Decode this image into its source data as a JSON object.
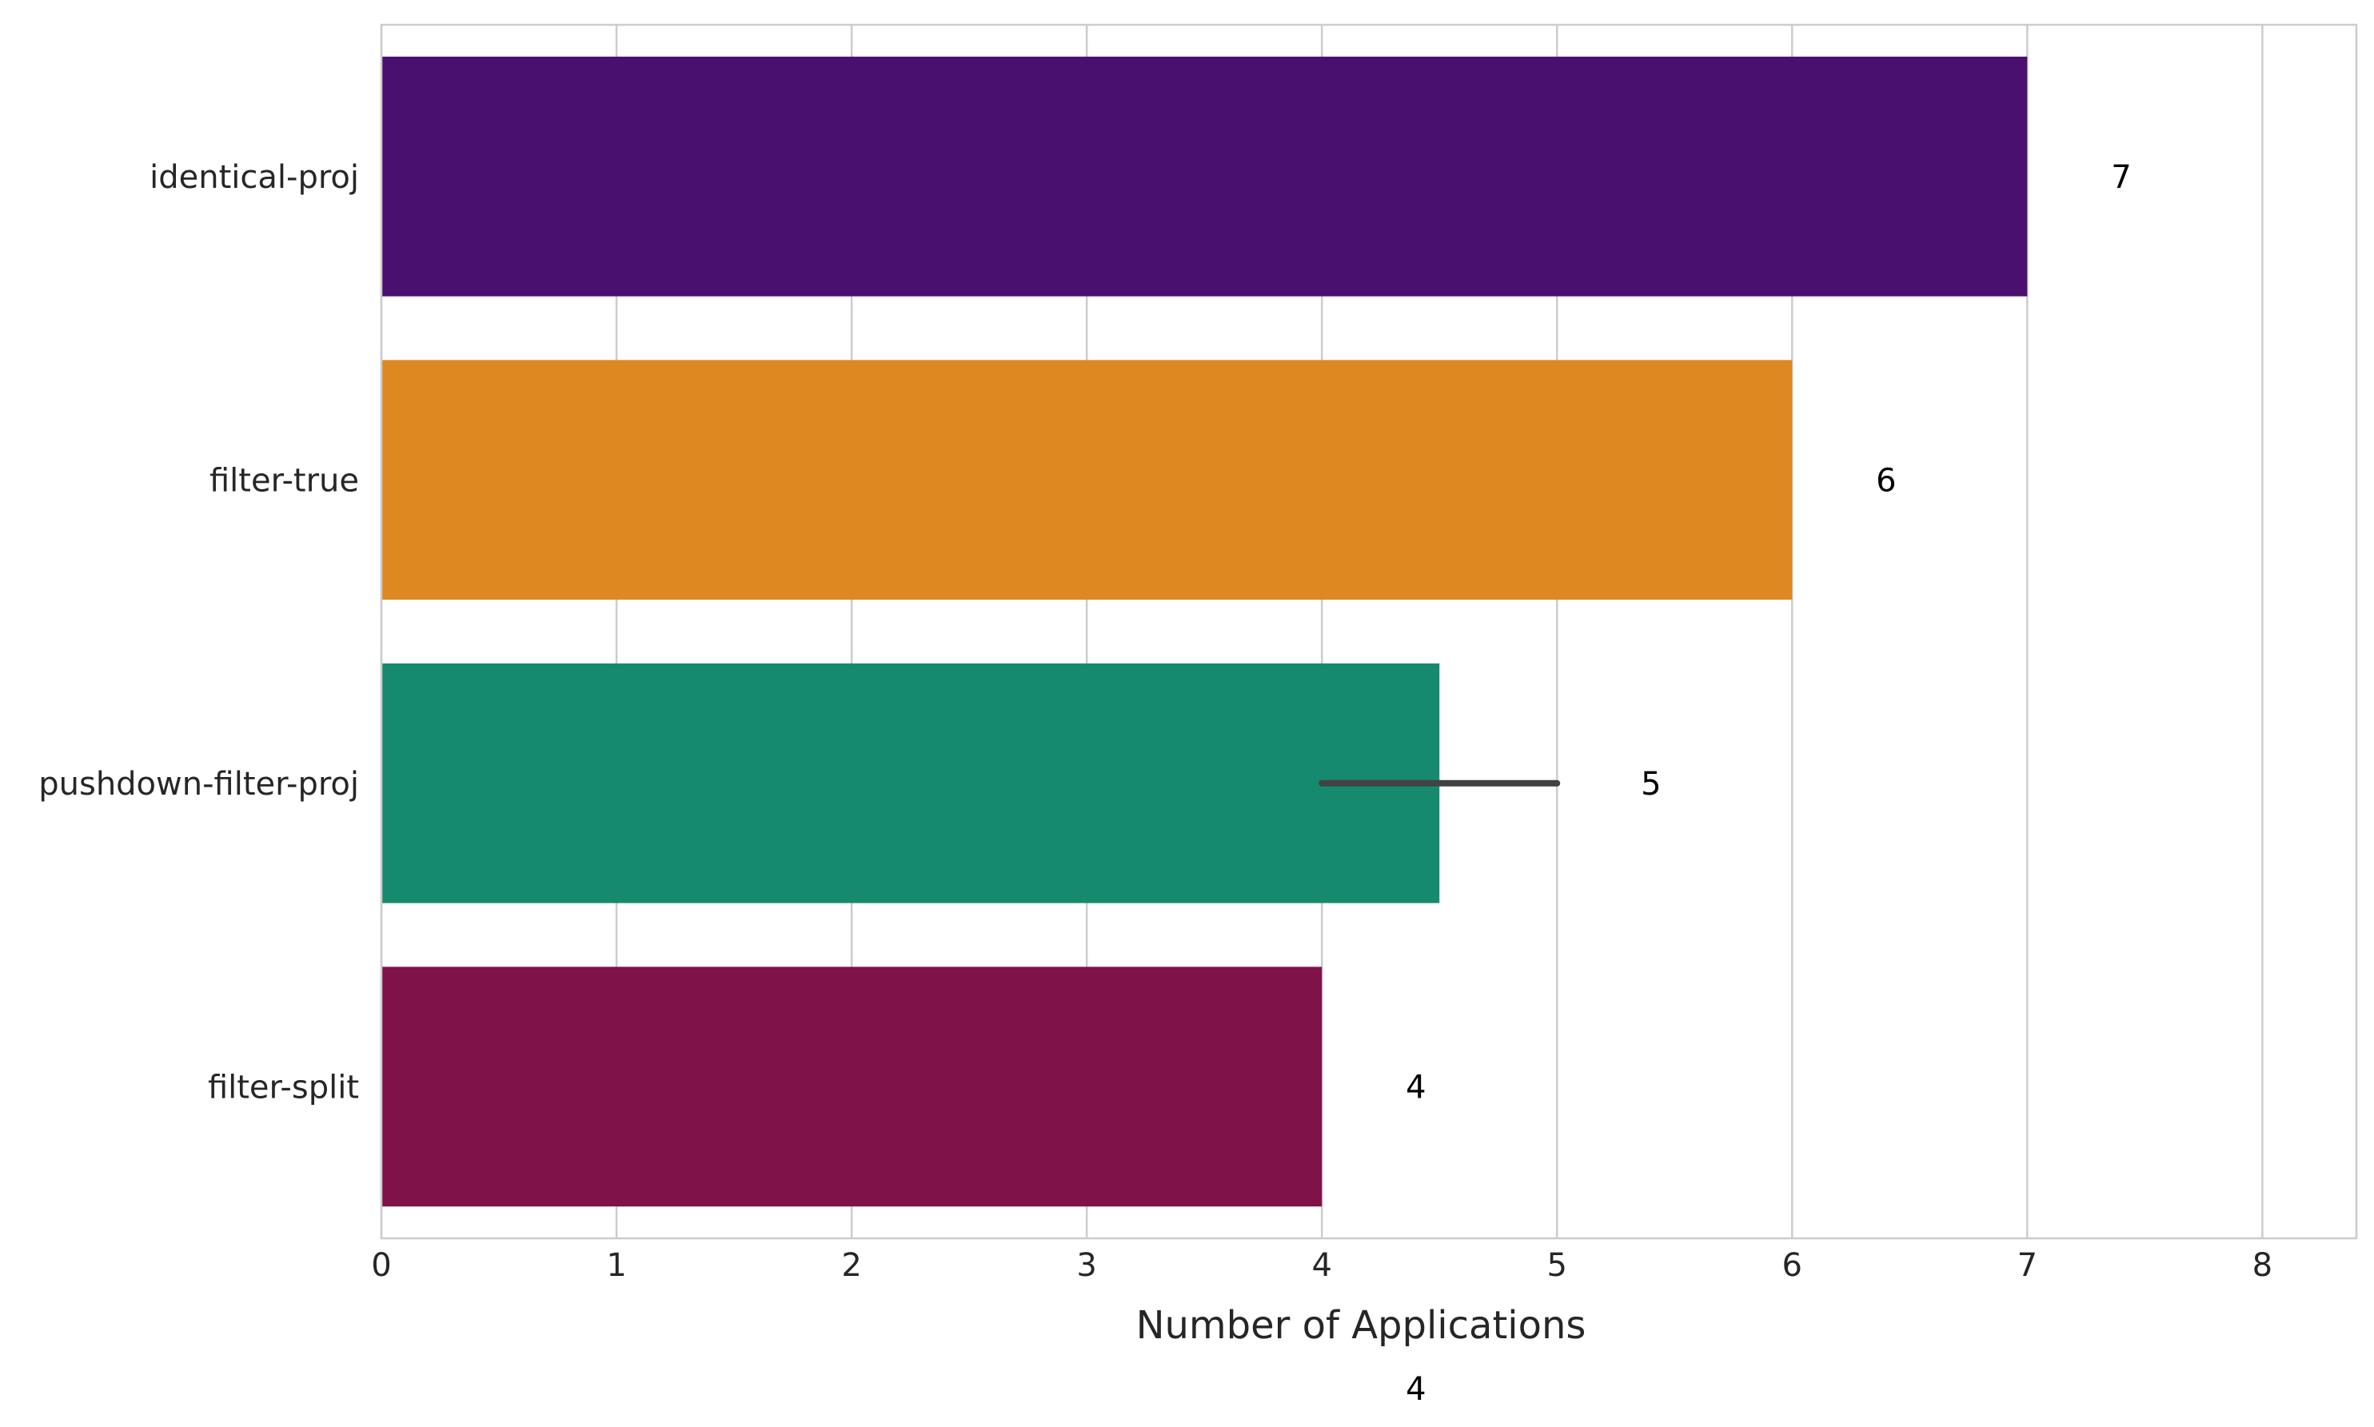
{
  "chart_data": {
    "type": "bar",
    "orientation": "horizontal",
    "title": "",
    "xlabel": "Number of Applications",
    "ylabel": "",
    "categories": [
      "identical-proj",
      "filter-true",
      "pushdown-filter-proj",
      "filter-split"
    ],
    "values": [
      7,
      6,
      4.5,
      4
    ],
    "colors": [
      "#4a1070",
      "#de8822",
      "#168a6e",
      "#7e1249"
    ],
    "error_bars": [
      null,
      null,
      [
        4,
        5
      ],
      null
    ],
    "error_bar_color": "#424242",
    "data_labels": [
      "7",
      "6",
      "5",
      "4"
    ],
    "extra_label": "4",
    "xlim": [
      0,
      8.4
    ],
    "xticks": [
      0,
      1,
      2,
      3,
      4,
      5,
      6,
      7,
      8
    ],
    "grid": true,
    "grid_color": "#cccccc",
    "legend": "none"
  }
}
